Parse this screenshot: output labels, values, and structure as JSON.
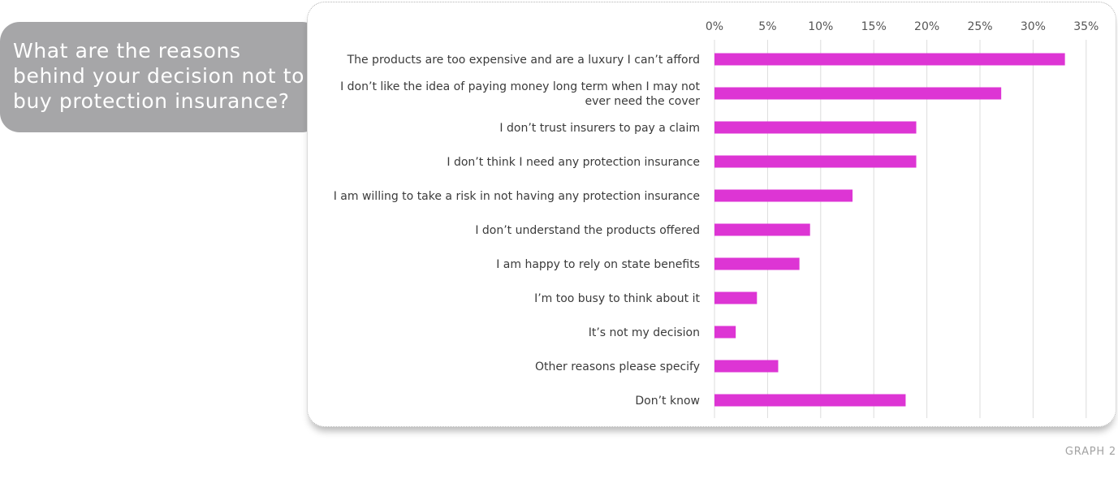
{
  "question": {
    "text": "What are the reasons behind your decision not to buy protection insurance?"
  },
  "graph_label": "GRAPH 2",
  "colors": {
    "bar": "#dd35d4",
    "grid": "#dcdcdc",
    "label": "#3b3b3b",
    "tick": "#555555"
  },
  "chart_data": {
    "type": "bar",
    "orientation": "horizontal",
    "title": "What are the reasons behind your decision not to buy protection insurance?",
    "categories": [
      [
        "The products are too expensive and are a luxury I can’t afford"
      ],
      [
        "I don’t like the idea of paying money long term when I may not",
        "ever need the cover"
      ],
      [
        "I don’t trust insurers to pay a claim"
      ],
      [
        "I don’t think I need any protection insurance"
      ],
      [
        "I am willing to take a risk in not having any protection insurance"
      ],
      [
        "I don’t understand the products offered"
      ],
      [
        "I am happy to rely on state benefits"
      ],
      [
        "I’m too busy to think about it"
      ],
      [
        "It’s not my decision"
      ],
      [
        "Other reasons please specify"
      ],
      [
        "Don’t know"
      ]
    ],
    "values": [
      33,
      27,
      19,
      19,
      13,
      9,
      8,
      4,
      2,
      6,
      18
    ],
    "xlim": [
      0,
      35
    ],
    "ticks": [
      0,
      5,
      10,
      15,
      20,
      25,
      30,
      35
    ],
    "tick_labels": [
      "0%",
      "5%",
      "10%",
      "15%",
      "20%",
      "25%",
      "30%",
      "35%"
    ],
    "xaxis_position": "top",
    "grid": true,
    "legend": "none"
  }
}
